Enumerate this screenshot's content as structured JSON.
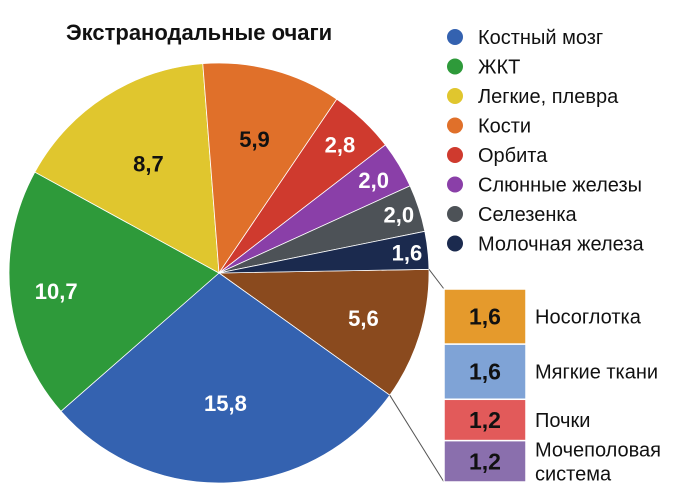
{
  "chart_data": {
    "type": "pie",
    "title": "Экстранодальные очаги",
    "slices": [
      {
        "label": "Костный мозг",
        "value": 15.8,
        "display": "15,8",
        "color": "#3462b0",
        "text_color": "#ffffff"
      },
      {
        "label": "ЖКТ",
        "value": 10.7,
        "display": "10,7",
        "color": "#2e9a3a",
        "text_color": "#ffffff"
      },
      {
        "label": "Легкие, плевра",
        "value": 8.7,
        "display": "8,7",
        "color": "#e0c62e",
        "text_color": "#111111"
      },
      {
        "label": "Кости",
        "value": 5.9,
        "display": "5,9",
        "color": "#e0702a",
        "text_color": "#111111"
      },
      {
        "label": "Орбита",
        "value": 2.8,
        "display": "2,8",
        "color": "#cf3a2e",
        "text_color": "#ffffff"
      },
      {
        "label": "Слюнные железы",
        "value": 2.0,
        "display": "2,0",
        "color": "#8a3fa8",
        "text_color": "#ffffff"
      },
      {
        "label": "Селезенка",
        "value": 2.0,
        "display": "2,0",
        "color": "#4d5257",
        "text_color": "#ffffff"
      },
      {
        "label": "Молочная железа",
        "value": 1.6,
        "display": "1,6",
        "color": "#1b2a4e",
        "text_color": "#ffffff"
      },
      {
        "label": "",
        "value": 5.6,
        "display": "5,6",
        "color": "#8a4a1e",
        "text_color": "#ffffff"
      }
    ],
    "breakdown": [
      {
        "label": "Носоглотка",
        "value": 1.6,
        "display": "1,6",
        "color": "#e59a2c"
      },
      {
        "label": "Мягкие ткани",
        "value": 1.6,
        "display": "1,6",
        "color": "#7fa3d6"
      },
      {
        "label": "Почки",
        "value": 1.2,
        "display": "1,2",
        "color": "#e25a5a"
      },
      {
        "label": "Мочеполовая система",
        "lines": [
          "Мочеполовая",
          "система"
        ],
        "value": 1.2,
        "display": "1,2",
        "color": "#8a6fad"
      }
    ],
    "legend": {
      "position": "right"
    }
  }
}
